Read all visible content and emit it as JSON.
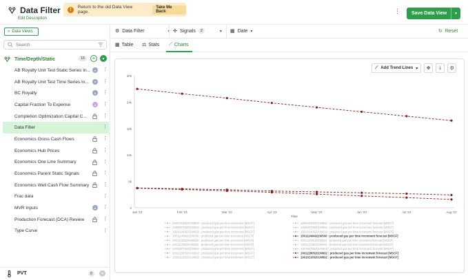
{
  "header": {
    "title": "Data Filter",
    "edit_description": "Edit Description",
    "banner_text": "Return to the old Data View page.",
    "banner_button": "Take Me Back",
    "save_label": "Save Data View"
  },
  "sidebar": {
    "data_views_label": "Data Views",
    "search_placeholder": "Search",
    "group": {
      "label": "Time/Depth/Static",
      "count": "15"
    },
    "items": [
      {
        "label": "AB Royalty Unit Test Static Series In...",
        "marker": "badge"
      },
      {
        "label": "AB Royalty Unit Test Time Series In...",
        "marker": "badge"
      },
      {
        "label": "BC Royalty",
        "marker": "badge"
      },
      {
        "label": "Capital Fraction To Expense",
        "marker": "badge-pink"
      },
      {
        "label": "Completion Optimization Capital C...",
        "marker": "lock"
      },
      {
        "label": "Data Filter",
        "marker": "none",
        "active": true
      },
      {
        "label": "Economics Gross Cash Flows",
        "marker": "lock"
      },
      {
        "label": "Economics Hub Prices",
        "marker": "lock"
      },
      {
        "label": "Economics One Line Summary",
        "marker": "lock"
      },
      {
        "label": "Economics Parent Static Signals",
        "marker": "lock"
      },
      {
        "label": "Economics Well Cash Flow Summary",
        "marker": "lock"
      },
      {
        "label": "Frac data",
        "marker": "none"
      },
      {
        "label": "MVR Inputs",
        "marker": "badge"
      },
      {
        "label": "Production Forecast (DCA) Review",
        "marker": "lock"
      },
      {
        "label": "Type Curve",
        "marker": "none"
      }
    ],
    "pvt": {
      "label": "PVT",
      "count": "0"
    }
  },
  "filterbar": {
    "data_filter": "Data Filter",
    "signals": "Signals",
    "signals_count": "2",
    "date": "Date",
    "reset": "Reset"
  },
  "tabs": {
    "table": "Table",
    "stats": "Stats",
    "charts": "Charts"
  },
  "toolbar": {
    "trend_lines": "Add Trend Lines"
  },
  "colors": {
    "accent": "#2e9d4a",
    "series_main": "#8b1a1a"
  },
  "chart_data": {
    "type": "line",
    "xlabel": "Time",
    "x": [
      "Jan '23",
      "Feb '23",
      "Mar '23",
      "Apr '23",
      "May '23",
      "Jun '23",
      "Jul '23",
      "Aug '23"
    ],
    "y_ticks": [
      "0",
      "6k",
      "12k",
      "18k",
      "24k",
      "30k"
    ],
    "ylim": [
      0,
      30000
    ],
    "series": [
      {
        "values": [
          27000,
          25900,
          24900,
          23800,
          22800,
          21800,
          20800,
          19800
        ]
      },
      {
        "values": [
          4500,
          4300,
          4100,
          3800,
          3600,
          3400,
          3200,
          2900
        ]
      },
      {
        "values": [
          4450,
          4150,
          3850,
          3500,
          3100,
          2700,
          2300,
          1900
        ]
      }
    ],
    "legend": [
      {
        "text": "100043105201W602 : produced gas per time increment [MSCF]",
        "active": false
      },
      {
        "text": "100043105201W602 : produced gas per time increment forecast [MSCF]",
        "active": false
      },
      {
        "text": "100062705201W602 : produced gas per time increment [MSCF]",
        "active": false
      },
      {
        "text": "100062705201W602 : produced gas per time increment forecast [MSCF]",
        "active": false
      },
      {
        "text": "100101405201W602 : produced gas per time increment [MSCF]",
        "active": false
      },
      {
        "text": "100101405201W602 : produced gas per time increment forecast [MSCF]",
        "active": false
      },
      {
        "text": "100111404922W500 : produced gas per time increment [MSCF]",
        "active": false
      },
      {
        "text": "100111404922W500 : produced gas per time increment forecast [MSCF]",
        "active": true
      },
      {
        "text": "100111405201W602 : produced gas per time increment [MSCF]",
        "active": false
      },
      {
        "text": "100111405201W602 : produced gas per time increment forecast [MSCF]",
        "active": false
      },
      {
        "text": "100111705201W602 : produced gas per time increment [MSCF]",
        "active": false
      },
      {
        "text": "100111705201W602 : produced gas per time increment forecast [MSCF]",
        "active": false
      },
      {
        "text": "100150705201W602 : produced gas per time increment [MSCF]",
        "active": false
      },
      {
        "text": "100150705201W602 : produced gas per time increment forecast [MSCF]",
        "active": false
      },
      {
        "text": "100122805201W602 : produced gas per time increment [MSCF]",
        "active": false
      },
      {
        "text": "100122805201W602 : produced gas per time increment forecast [MSCF]",
        "active": true
      },
      {
        "text": "100102105201W602 : produced gas per time increment [MSCF]",
        "active": false
      },
      {
        "text": "100102105201W602 : produced gas per time increment forecast [MSCF]",
        "active": true
      }
    ]
  }
}
